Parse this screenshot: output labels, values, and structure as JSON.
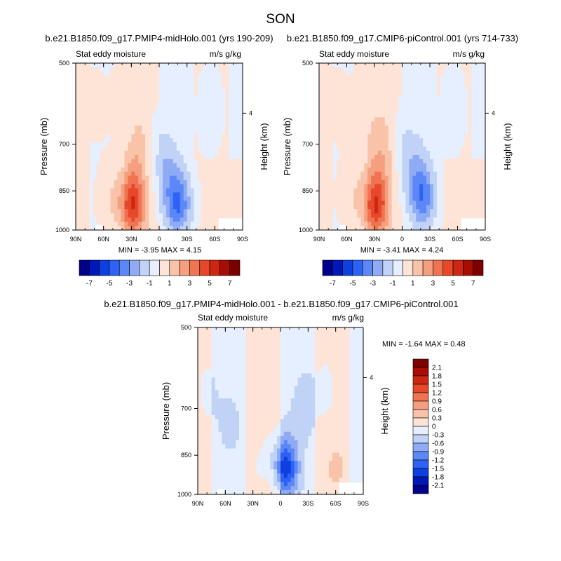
{
  "page": {
    "title": "SON"
  },
  "chart_data": [
    {
      "type": "heatmap",
      "title": "b.e21.B1850.f09_g17.PMIP4-midHolo.001 (yrs 190-209)",
      "left_label": "Stat eddy moisture",
      "right_label": "m/s g/kg",
      "ylabel": "Pressure (mb)",
      "ylabel_right": "Height (km)",
      "x_ticks": [
        "90N",
        "60N",
        "30N",
        "0",
        "30S",
        "60S",
        "90S"
      ],
      "y_ticks": [
        "500",
        "700",
        "850",
        "1000"
      ],
      "y_right_ticks": [
        "4"
      ],
      "stats": "MIN = -3.95  MAX =  4.15",
      "min": -3.95,
      "max": 4.15,
      "features": [
        {
          "lat": 70,
          "p": 600,
          "value": 0.3
        },
        {
          "lat": 40,
          "p": 600,
          "value": 0.5
        },
        {
          "lat": 35,
          "p": 650,
          "value": -0.4
        },
        {
          "lat": 20,
          "p": 700,
          "value": 1.2
        },
        {
          "lat": 28,
          "p": 820,
          "value": 1.6
        },
        {
          "lat": 28,
          "p": 920,
          "value": 4.15
        },
        {
          "lat": 52,
          "p": 880,
          "value": 1.0
        },
        {
          "lat": 5,
          "p": 720,
          "value": -0.8
        },
        {
          "lat": -10,
          "p": 780,
          "value": -1.5
        },
        {
          "lat": -20,
          "p": 900,
          "value": -3.95
        },
        {
          "lat": -55,
          "p": 620,
          "value": -0.6
        },
        {
          "lat": -82,
          "p": 880,
          "value": 0.8
        }
      ]
    },
    {
      "type": "heatmap",
      "title": "b.e21.B1850.f09_g17.CMIP6-piControl.001 (yrs 714-733)",
      "left_label": "Stat eddy moisture",
      "right_label": "m/s g/kg",
      "ylabel": "Pressure (mb)",
      "ylabel_right": "Height (km)",
      "x_ticks": [
        "90N",
        "60N",
        "30N",
        "0",
        "30S",
        "60S",
        "90S"
      ],
      "y_ticks": [
        "500",
        "700",
        "850",
        "1000"
      ],
      "y_right_ticks": [
        "4"
      ],
      "stats": "MIN = -3.41  MAX =  4.24",
      "min": -3.41,
      "max": 4.24,
      "features": [
        {
          "lat": 70,
          "p": 600,
          "value": 0.3
        },
        {
          "lat": 40,
          "p": 600,
          "value": 0.5
        },
        {
          "lat": 20,
          "p": 700,
          "value": 1.2
        },
        {
          "lat": 28,
          "p": 820,
          "value": 1.6
        },
        {
          "lat": 28,
          "p": 920,
          "value": 4.24
        },
        {
          "lat": 55,
          "p": 870,
          "value": 1.0
        },
        {
          "lat": 0,
          "p": 700,
          "value": -0.8
        },
        {
          "lat": -15,
          "p": 780,
          "value": -1.5
        },
        {
          "lat": -22,
          "p": 880,
          "value": -3.41
        },
        {
          "lat": -55,
          "p": 620,
          "value": -0.6
        },
        {
          "lat": -82,
          "p": 880,
          "value": 0.8
        }
      ]
    },
    {
      "type": "heatmap",
      "title": "b.e21.B1850.f09_g17.PMIP4-midHolo.001 - b.e21.B1850.f09_g17.CMIP6-piControl.001",
      "left_label": "Stat eddy moisture",
      "right_label": "m/s g/kg",
      "ylabel": "Pressure (mb)",
      "ylabel_right": "Height (km)",
      "x_ticks": [
        "90N",
        "60N",
        "30N",
        "0",
        "30S",
        "60S",
        "90S"
      ],
      "y_ticks": [
        "500",
        "700",
        "850",
        "1000"
      ],
      "y_right_ticks": [
        "4"
      ],
      "stats": "MIN =  -1.64  MAX =   0.48",
      "min": -1.64,
      "max": 0.48,
      "features": [
        {
          "lat": 80,
          "p": 650,
          "value": -0.2
        },
        {
          "lat": 55,
          "p": 750,
          "value": -0.25
        },
        {
          "lat": 20,
          "p": 640,
          "value": 0.15
        },
        {
          "lat": 15,
          "p": 900,
          "value": -0.4
        },
        {
          "lat": 8,
          "p": 930,
          "value": 0.48
        },
        {
          "lat": -5,
          "p": 900,
          "value": -1.64
        },
        {
          "lat": -25,
          "p": 700,
          "value": -0.3
        },
        {
          "lat": -50,
          "p": 650,
          "value": -0.2
        },
        {
          "lat": -60,
          "p": 900,
          "value": 0.2
        }
      ]
    }
  ],
  "colorbars": {
    "top": {
      "labels": [
        "-7",
        "-5",
        "-3",
        "-1",
        "1",
        "3",
        "5",
        "7"
      ],
      "levels": [
        -7,
        -6,
        -5,
        -4,
        -3,
        -2,
        -1,
        0,
        1,
        2,
        3,
        4,
        5,
        6,
        7
      ]
    },
    "bottom": {
      "labels": [
        "2.1",
        "1.8",
        "1.5",
        "1.2",
        "0.9",
        "0.6",
        "0.3",
        "0",
        "-0.3",
        "-0.6",
        "-0.9",
        "-1.2",
        "-1.5",
        "-1.8",
        "-2.1"
      ],
      "levels": [
        2.1,
        1.8,
        1.5,
        1.2,
        0.9,
        0.6,
        0.3,
        0,
        -0.3,
        -0.6,
        -0.9,
        -1.2,
        -1.5,
        -1.8,
        -2.1
      ]
    },
    "colors": [
      "#00008a",
      "#0018b8",
      "#0e3fe0",
      "#2d62f4",
      "#5c87f6",
      "#8fabf5",
      "#c0d2f6",
      "#e5efff",
      "#fde4d6",
      "#f9c3a9",
      "#f59f7f",
      "#f07452",
      "#e7472b",
      "#cd2612",
      "#a80d04",
      "#7c0000"
    ]
  }
}
